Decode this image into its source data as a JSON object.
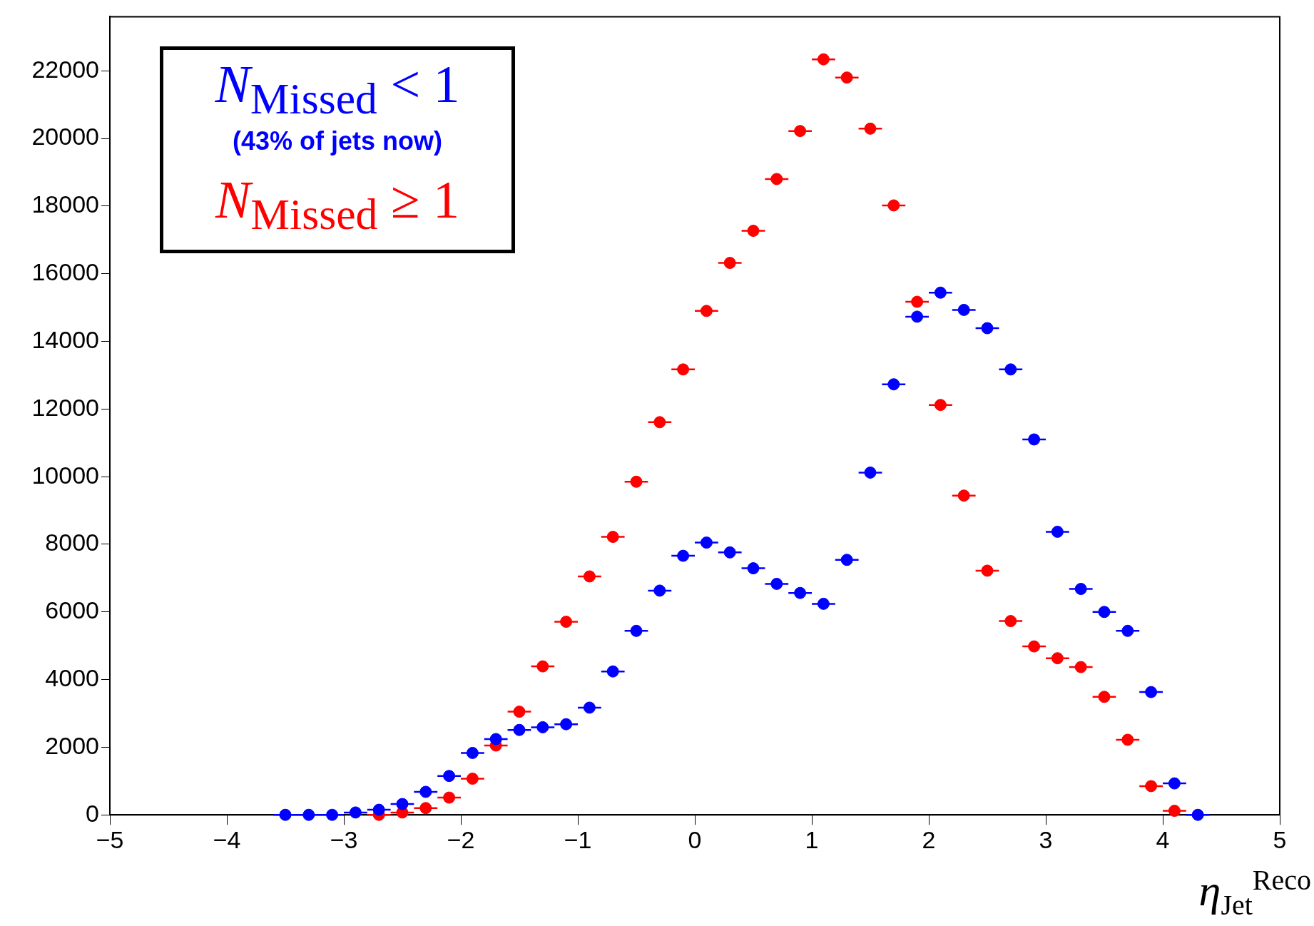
{
  "chart_data": {
    "type": "scatter",
    "xlabel": "η$_{Jet}$$^{Reco}$",
    "legend": "top left",
    "marker": "circle",
    "grid": false,
    "xlim": [
      -5,
      5
    ],
    "xticks": [
      -5,
      -4,
      -3,
      -2,
      -1,
      0,
      1,
      2,
      3,
      4,
      5
    ],
    "ylim": [
      0,
      23600
    ],
    "yticks": [
      0,
      2000,
      4000,
      6000,
      8000,
      10000,
      12000,
      14000,
      16000,
      18000,
      20000,
      22000
    ],
    "annotations": [
      "(43% of jets now)"
    ],
    "series": [
      {
        "name": "N$_{Missed}$ < 1",
        "color": "#0000ff",
        "x": [
          -3.5,
          -3.3,
          -3.1,
          -2.9,
          -2.7,
          -2.5,
          -2.3,
          -2.1,
          -1.9,
          -1.7,
          -1.5,
          -1.3,
          -1.1,
          -0.9,
          -0.7,
          -0.5,
          -0.3,
          -0.1,
          0.1,
          0.3,
          0.5,
          0.7,
          0.9,
          1.1,
          1.3,
          1.5,
          1.7,
          1.9,
          2.1,
          2.3,
          2.5,
          2.7,
          2.9,
          3.1,
          3.3,
          3.5,
          3.7,
          3.9,
          4.1,
          4.3
        ],
        "values": [
          0,
          0,
          0,
          70,
          150,
          320,
          680,
          1150,
          1830,
          2240,
          2510,
          2590,
          2680,
          3170,
          4240,
          5440,
          6630,
          7660,
          8050,
          7760,
          7290,
          6830,
          6560,
          6240,
          7540,
          10120,
          12730,
          14730,
          15440,
          14930,
          14390,
          13170,
          11100,
          8370,
          6680,
          6000,
          5440,
          3630,
          930,
          0
        ],
        "xerrors": [
          0.1,
          0.1,
          0.1,
          0.1,
          0.1,
          0.1,
          0.1,
          0.1,
          0.1,
          0.1,
          0.1,
          0.1,
          0.1,
          0.1,
          0.1,
          0.1,
          0.1,
          0.1,
          0.1,
          0.1,
          0.1,
          0.1,
          0.1,
          0.1,
          0.1,
          0.1,
          0.1,
          0.1,
          0.1,
          0.1,
          0.1,
          0.1,
          0.1,
          0.1,
          0.1,
          0.1,
          0.1,
          0.1,
          0.1,
          0.1
        ]
      },
      {
        "name": "N$_{Missed}$ ≥ 1",
        "color": "#ff0000",
        "x": [
          -2.7,
          -2.5,
          -2.3,
          -2.1,
          -1.9,
          -1.7,
          -1.5,
          -1.3,
          -1.1,
          -0.9,
          -0.7,
          -0.5,
          -0.3,
          -0.1,
          0.1,
          0.3,
          0.5,
          0.7,
          0.9,
          1.1,
          1.3,
          1.5,
          1.7,
          1.9,
          2.1,
          2.3,
          2.5,
          2.7,
          2.9,
          3.1,
          3.3,
          3.5,
          3.7,
          3.9,
          4.1
        ],
        "values": [
          0,
          70,
          200,
          510,
          1070,
          2050,
          3050,
          4390,
          5710,
          7050,
          8220,
          9850,
          11610,
          13170,
          14900,
          16320,
          17270,
          18800,
          20220,
          22340,
          21800,
          20290,
          18020,
          15170,
          12120,
          9440,
          7220,
          5730,
          4980,
          4630,
          4370,
          3490,
          2220,
          850,
          120
        ],
        "xerrors": [
          0.1,
          0.1,
          0.1,
          0.1,
          0.1,
          0.1,
          0.1,
          0.1,
          0.1,
          0.1,
          0.1,
          0.1,
          0.1,
          0.1,
          0.1,
          0.1,
          0.1,
          0.1,
          0.1,
          0.1,
          0.1,
          0.1,
          0.1,
          0.1,
          0.1,
          0.1,
          0.1,
          0.1,
          0.1,
          0.1,
          0.1,
          0.1,
          0.1,
          0.1,
          0.1
        ]
      }
    ]
  }
}
